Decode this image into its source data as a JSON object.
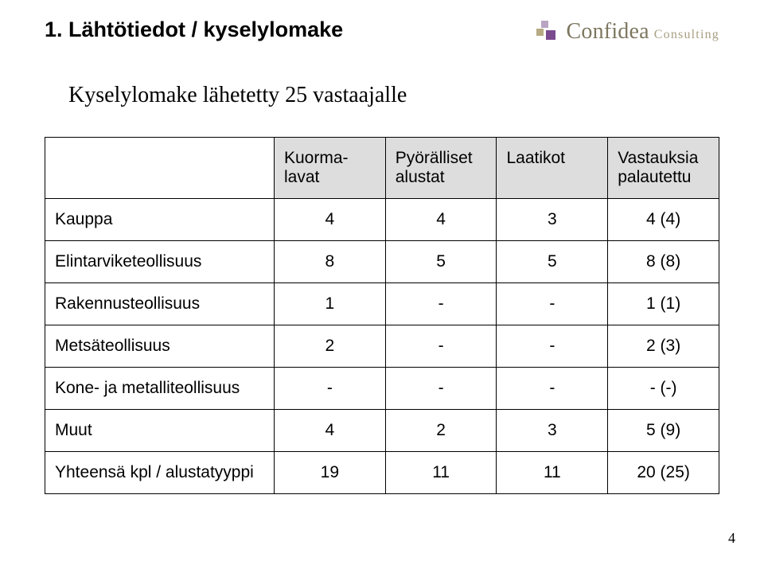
{
  "colors": {
    "th_bg": "#dddddd",
    "logo_a": "#b9a5c2",
    "logo_b": "#b5aa82",
    "logo_c": "#7a4a8f",
    "logo_name": "#7d7760",
    "logo_sub": "#a89f82"
  },
  "header": {
    "title": "1. Lähtötiedot / kyselylomake",
    "logo_name": "Confidea",
    "logo_sub": "Consulting"
  },
  "subtitle": "Kyselylomake lähetetty 25 vastaajalle",
  "table": {
    "columns": [
      "",
      "Kuorma-lavat",
      "Pyörälliset alustat",
      "Laatikot",
      "Vastauksia palautettu"
    ],
    "rows": [
      {
        "label": "Kauppa",
        "c1": "4",
        "c2": "4",
        "c3": "3",
        "c4": "4 (4)"
      },
      {
        "label": "Elintarviketeollisuus",
        "c1": "8",
        "c2": "5",
        "c3": "5",
        "c4": "8 (8)"
      },
      {
        "label": "Rakennusteollisuus",
        "c1": "1",
        "c2": "-",
        "c3": "-",
        "c4": "1 (1)"
      },
      {
        "label": "Metsäteollisuus",
        "c1": "2",
        "c2": "-",
        "c3": "-",
        "c4": "2 (3)"
      },
      {
        "label": "Kone- ja metalliteollisuus",
        "c1": "-",
        "c2": "-",
        "c3": "-",
        "c4": "- (-)"
      },
      {
        "label": "Muut",
        "c1": "4",
        "c2": "2",
        "c3": "3",
        "c4": "5 (9)"
      },
      {
        "label": "Yhteensä kpl / alustatyyppi",
        "c1": "19",
        "c2": "11",
        "c3": "11",
        "c4": "20 (25)"
      }
    ]
  },
  "page_number": "4"
}
